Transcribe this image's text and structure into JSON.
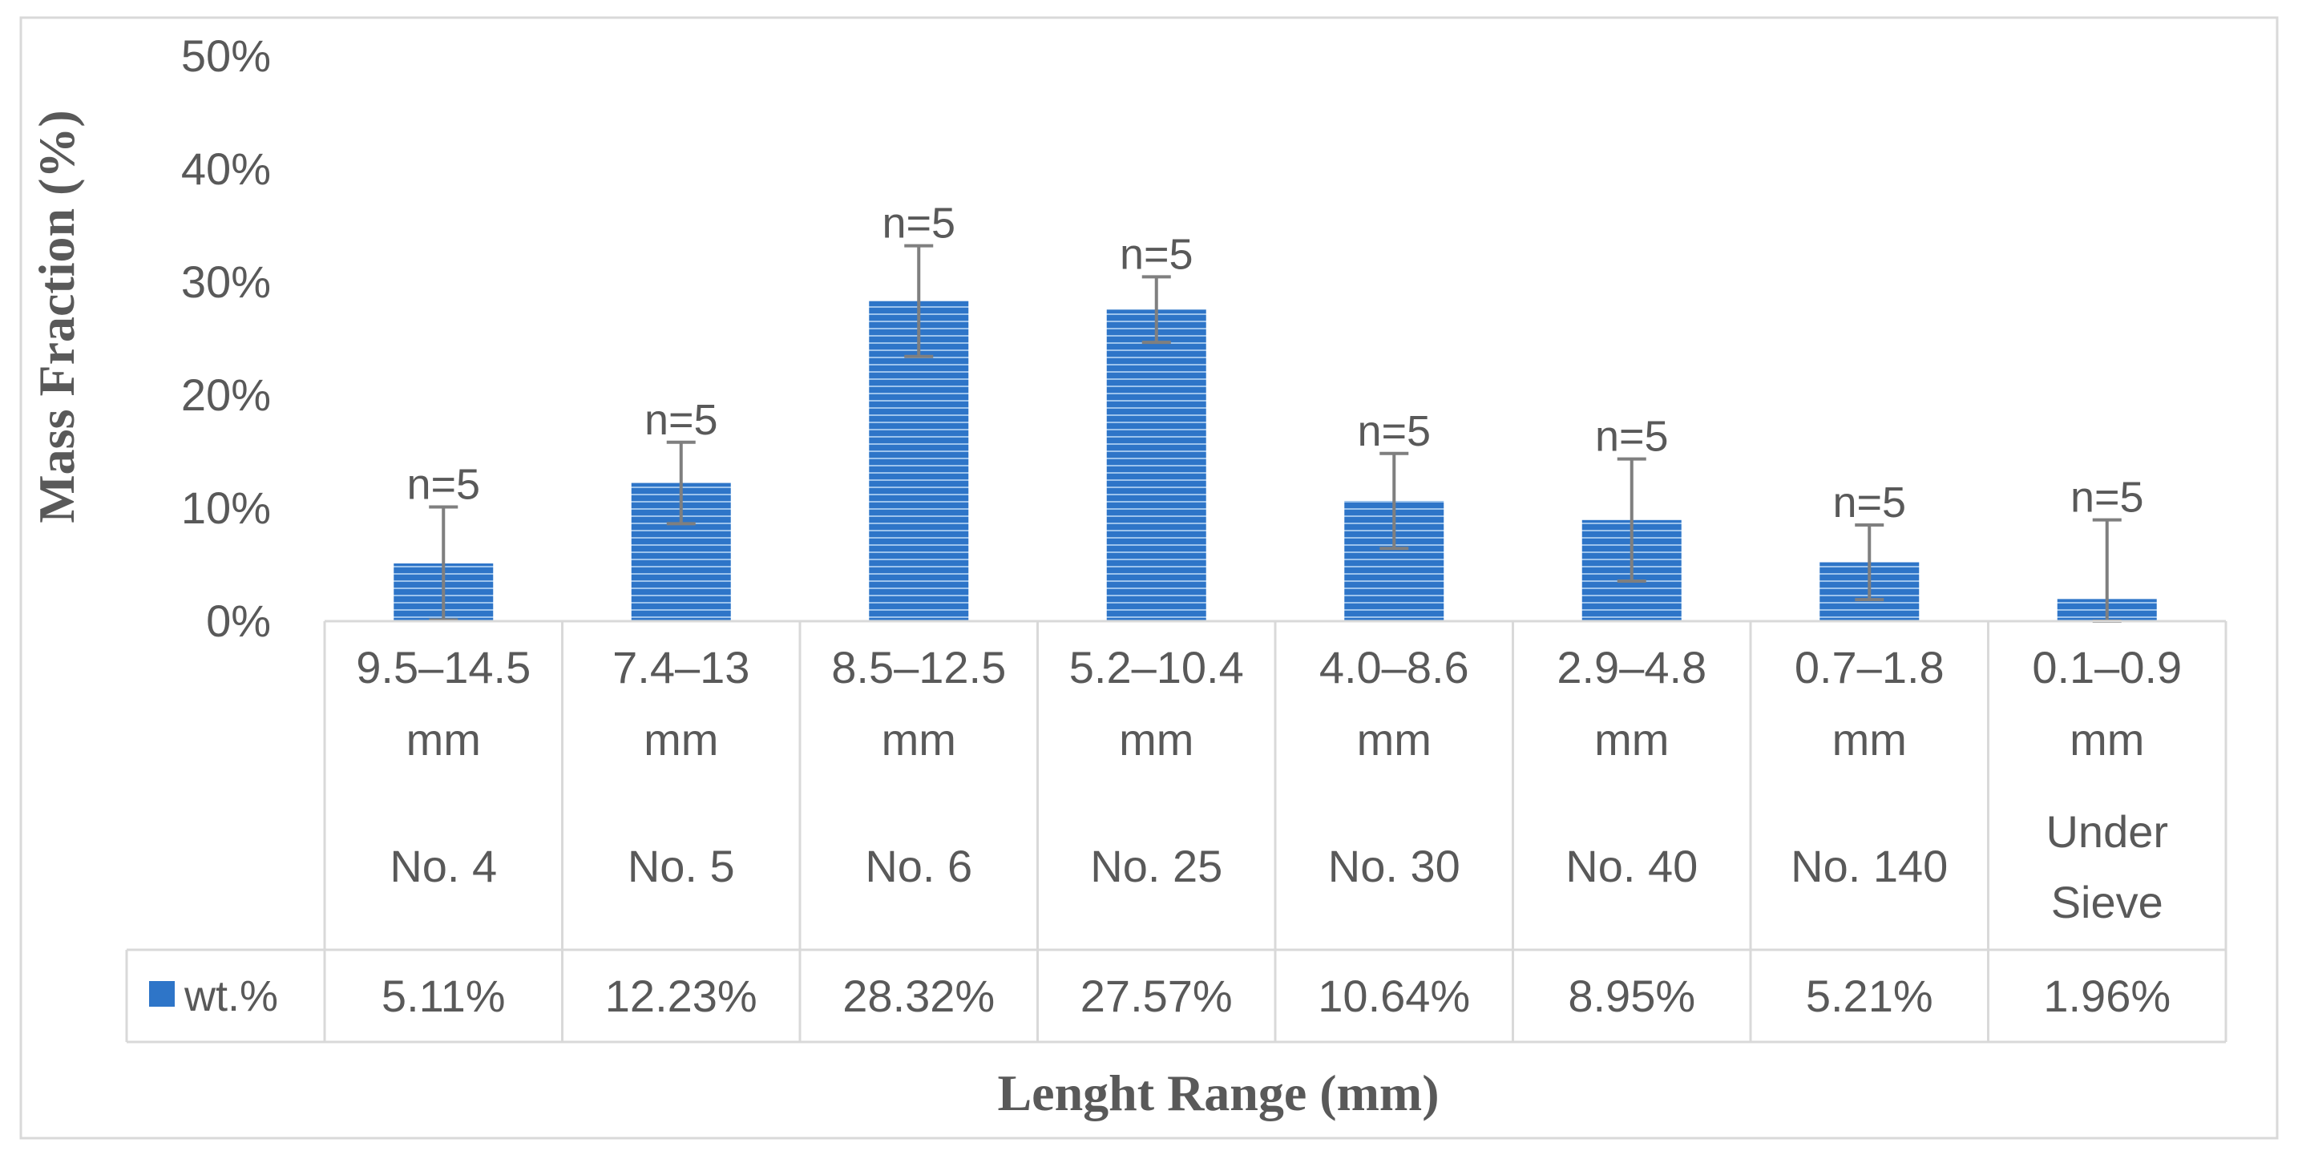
{
  "chart_data": {
    "type": "bar",
    "ylabel": "Mass Fraction (%)",
    "xlabel": "Lenght Range (mm)",
    "ylim": [
      0,
      50
    ],
    "yticks": [
      0,
      10,
      20,
      30,
      40,
      50
    ],
    "ytick_labels": [
      "0%",
      "10%",
      "20%",
      "30%",
      "40%",
      "50%"
    ],
    "grid": false,
    "legend_position": "data-table",
    "categories": [
      {
        "range": "9.5–14.5",
        "unit": "mm",
        "sieve": "No. 4"
      },
      {
        "range": "7.4–13",
        "unit": "mm",
        "sieve": "No. 5"
      },
      {
        "range": "8.5–12.5",
        "unit": "mm",
        "sieve": "No. 6"
      },
      {
        "range": "5.2–10.4",
        "unit": "mm",
        "sieve": "No. 25"
      },
      {
        "range": "4.0–8.6",
        "unit": "mm",
        "sieve": "No. 30"
      },
      {
        "range": "2.9–4.8",
        "unit": "mm",
        "sieve": "No. 40"
      },
      {
        "range": "0.7–1.8",
        "unit": "mm",
        "sieve": "No. 140"
      },
      {
        "range": "0.1–0.9",
        "unit": "mm",
        "sieve": "Under\nSieve"
      }
    ],
    "series": [
      {
        "name": "wt.%",
        "color": "#2e75c8",
        "values": [
          5.11,
          12.23,
          28.32,
          27.57,
          10.64,
          8.95,
          5.21,
          1.96
        ],
        "value_labels": [
          "5.11%",
          "12.23%",
          "28.32%",
          "27.57%",
          "10.64%",
          "8.95%",
          "5.21%",
          "1.96%"
        ],
        "error": [
          5.0,
          3.6,
          4.9,
          2.9,
          4.2,
          5.4,
          3.3,
          7.0
        ]
      }
    ],
    "annotations": [
      "n=5",
      "n=5",
      "n=5",
      "n=5",
      "n=5",
      "n=5",
      "n=5",
      "n=5"
    ],
    "colors": {
      "bar": "#2e75c8",
      "bar_line": "#9cc3ec",
      "error_bar": "#7f7f7f",
      "table_border": "#d9d9d9",
      "text": "#595959"
    }
  }
}
